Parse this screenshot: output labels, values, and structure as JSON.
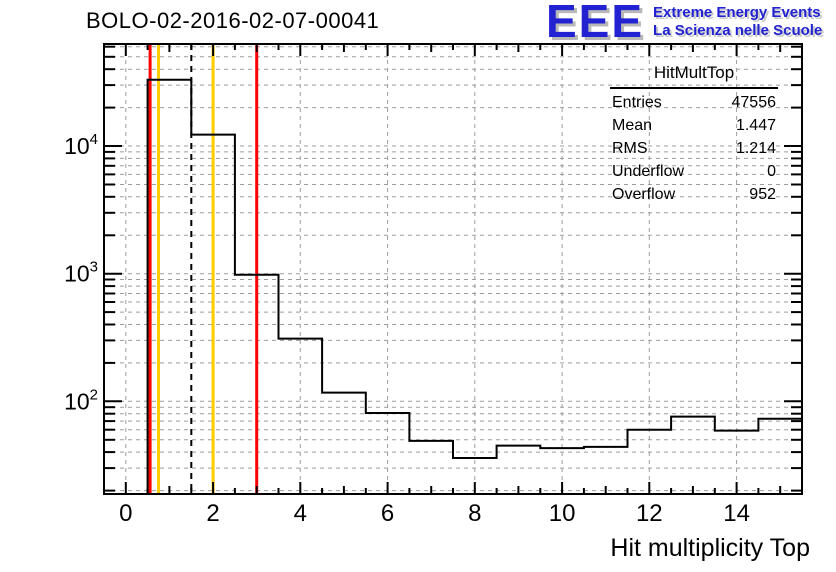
{
  "header": {
    "title": "BOLO-02-2016-02-07-00041"
  },
  "logo": {
    "letters": "EEE",
    "line1": "Extreme Energy Events",
    "line2": "La Scienza nelle Scuole",
    "color": "#2222d2"
  },
  "stats": {
    "title": "HitMultTop",
    "rows": [
      {
        "label": "Entries",
        "value": "47556"
      },
      {
        "label": "Mean",
        "value": "1.447"
      },
      {
        "label": "RMS",
        "value": "1.214"
      },
      {
        "label": "Underflow",
        "value": "0"
      },
      {
        "label": "Overflow",
        "value": "952"
      }
    ]
  },
  "chart_data": {
    "type": "bar",
    "subtype": "step-histogram",
    "title": "BOLO-02-2016-02-07-00041",
    "xlabel": "Hit multiplicity Top",
    "ylabel": "",
    "y_scale": "log",
    "grid": true,
    "x_range": [
      -0.5,
      15.5
    ],
    "y_range": [
      18.8,
      63000
    ],
    "bin_centers": [
      0,
      1,
      2,
      3,
      4,
      5,
      6,
      7,
      8,
      9,
      10,
      11,
      12,
      13,
      14,
      15
    ],
    "values": [
      0,
      33000,
      12300,
      980,
      310,
      117,
      81,
      49,
      36,
      45,
      43,
      44,
      60,
      76,
      59,
      73
    ],
    "x_major_ticks": [
      0,
      2,
      4,
      6,
      8,
      10,
      12,
      14
    ],
    "y_major_ticks": [
      100,
      1000,
      10000
    ],
    "histogram_color": "#000000",
    "marker_lines": [
      {
        "x": 0.5,
        "color": "#ff0000",
        "style": "solid",
        "name": "red-threshold-low"
      },
      {
        "x": 0.75,
        "color": "#ffcc00",
        "style": "solid",
        "name": "yellow-threshold-low"
      },
      {
        "x": 1.5,
        "color": "#000000",
        "style": "dashed",
        "name": "dashed-reference"
      },
      {
        "x": 2.0,
        "color": "#ffcc00",
        "style": "solid",
        "name": "yellow-threshold-high"
      },
      {
        "x": 3.0,
        "color": "#ff0000",
        "style": "solid",
        "name": "red-threshold-high"
      }
    ]
  }
}
